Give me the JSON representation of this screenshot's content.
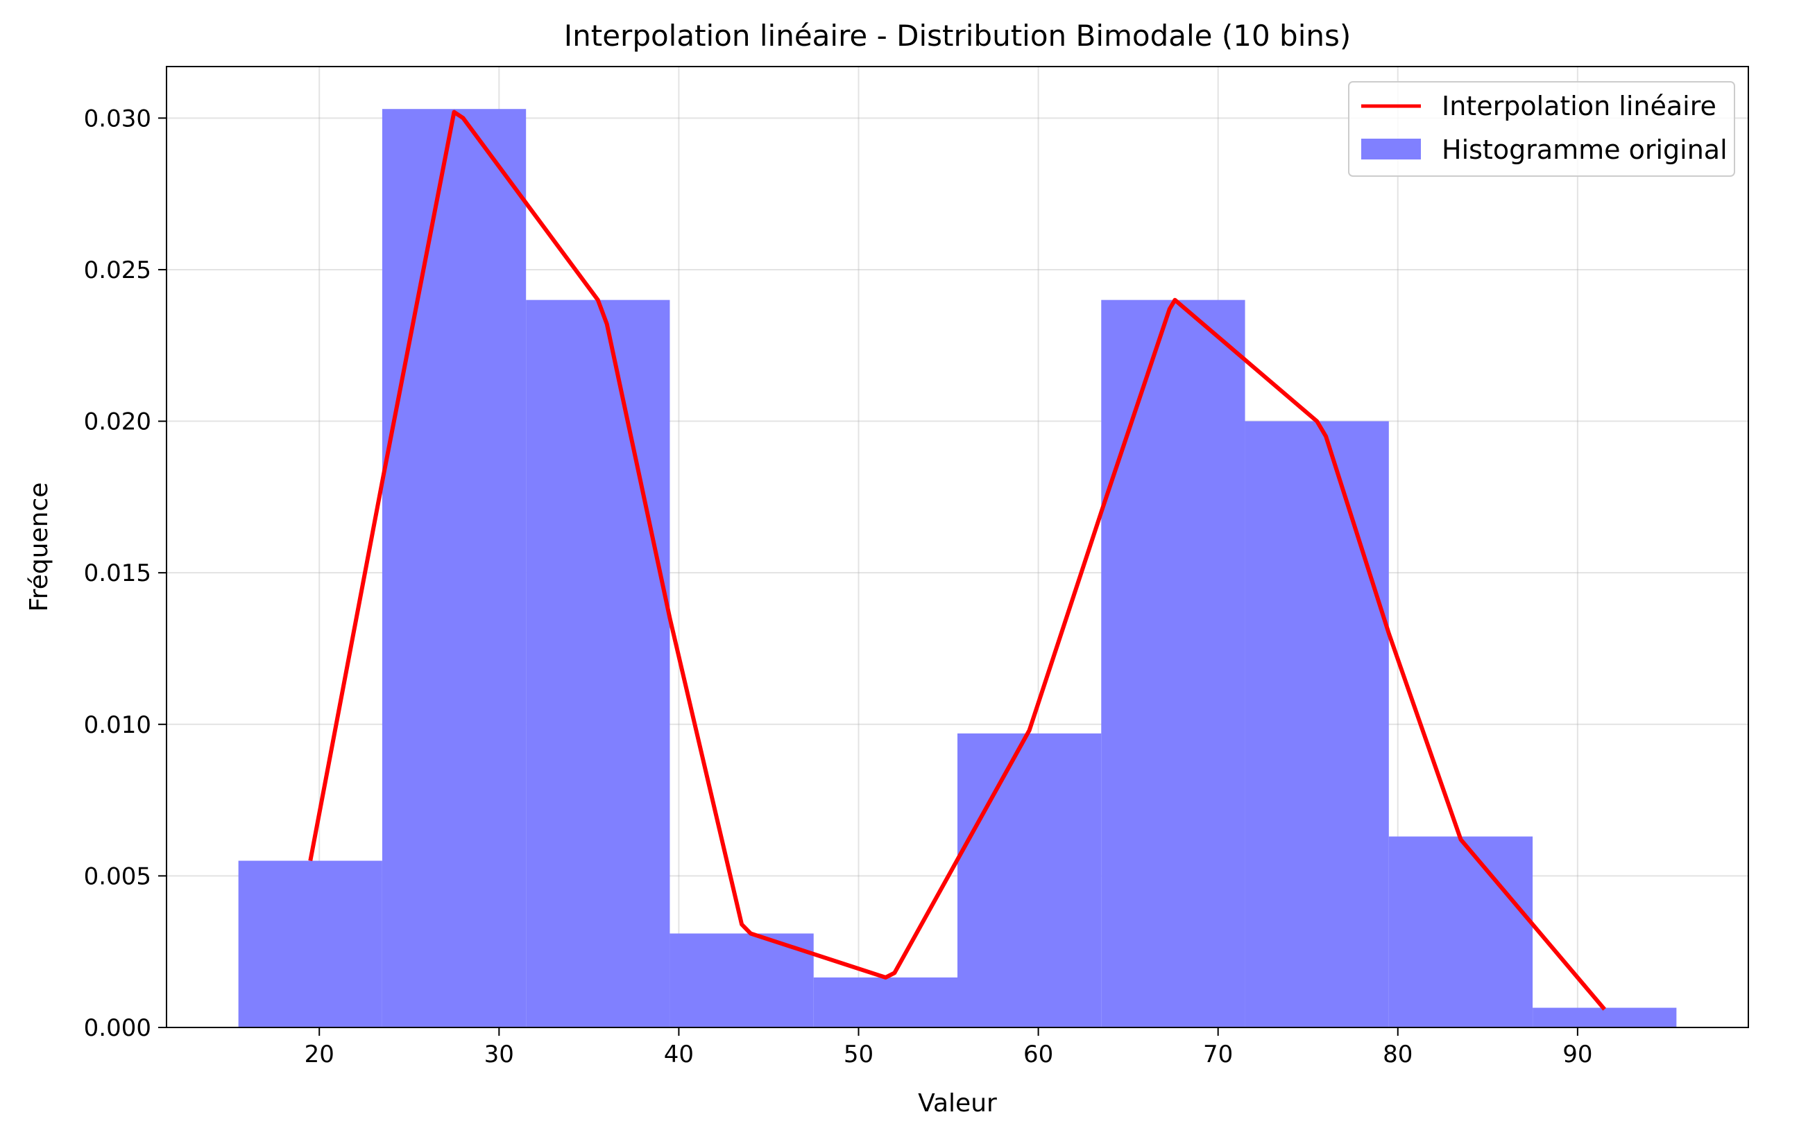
{
  "chart_data": {
    "type": "bar",
    "title": "Interpolation linéaire - Distribution Bimodale (10 bins)",
    "xlabel": "Valeur",
    "ylabel": "Fréquence",
    "xlim": [
      11.5,
      99.5
    ],
    "ylim": [
      0,
      0.0317
    ],
    "xticks": [
      20,
      30,
      40,
      50,
      60,
      70,
      80,
      90
    ],
    "yticks": [
      0.0,
      0.005,
      0.01,
      0.015,
      0.02,
      0.025,
      0.03
    ],
    "xtick_labels": [
      "20",
      "30",
      "40",
      "50",
      "60",
      "70",
      "80",
      "90"
    ],
    "ytick_labels": [
      "0.000",
      "0.005",
      "0.010",
      "0.015",
      "0.020",
      "0.025",
      "0.030"
    ],
    "grid": true,
    "legend_position": "top-right",
    "series": [
      {
        "name": "Interpolation linéaire",
        "type": "line",
        "color": "#ff0000",
        "points": [
          [
            19.5,
            0.0055
          ],
          [
            23.5,
            0.018
          ],
          [
            27.5,
            0.0302
          ],
          [
            28.0,
            0.03
          ],
          [
            35.5,
            0.024
          ],
          [
            36.0,
            0.0232
          ],
          [
            39.5,
            0.0135
          ],
          [
            43.5,
            0.0034
          ],
          [
            44.0,
            0.0031
          ],
          [
            51.5,
            0.00165
          ],
          [
            52.0,
            0.0018
          ],
          [
            59.5,
            0.0098
          ],
          [
            63.5,
            0.017
          ],
          [
            67.3,
            0.0237
          ],
          [
            67.6,
            0.024
          ],
          [
            75.5,
            0.02
          ],
          [
            76.0,
            0.0195
          ],
          [
            79.5,
            0.013
          ],
          [
            83.5,
            0.0062
          ],
          [
            91.5,
            0.0006
          ]
        ]
      },
      {
        "name": "Histogramme original",
        "type": "bar",
        "color": "#8080ff",
        "bins": [
          [
            15.5,
            23.5,
            0.0055
          ],
          [
            23.5,
            31.5,
            0.0303
          ],
          [
            31.5,
            39.5,
            0.024
          ],
          [
            39.5,
            47.5,
            0.0031
          ],
          [
            47.5,
            55.5,
            0.00165
          ],
          [
            55.5,
            63.5,
            0.0097
          ],
          [
            63.5,
            71.5,
            0.024
          ],
          [
            71.5,
            79.5,
            0.02
          ],
          [
            79.5,
            87.5,
            0.0063
          ],
          [
            87.5,
            95.5,
            0.00065
          ]
        ]
      }
    ]
  }
}
